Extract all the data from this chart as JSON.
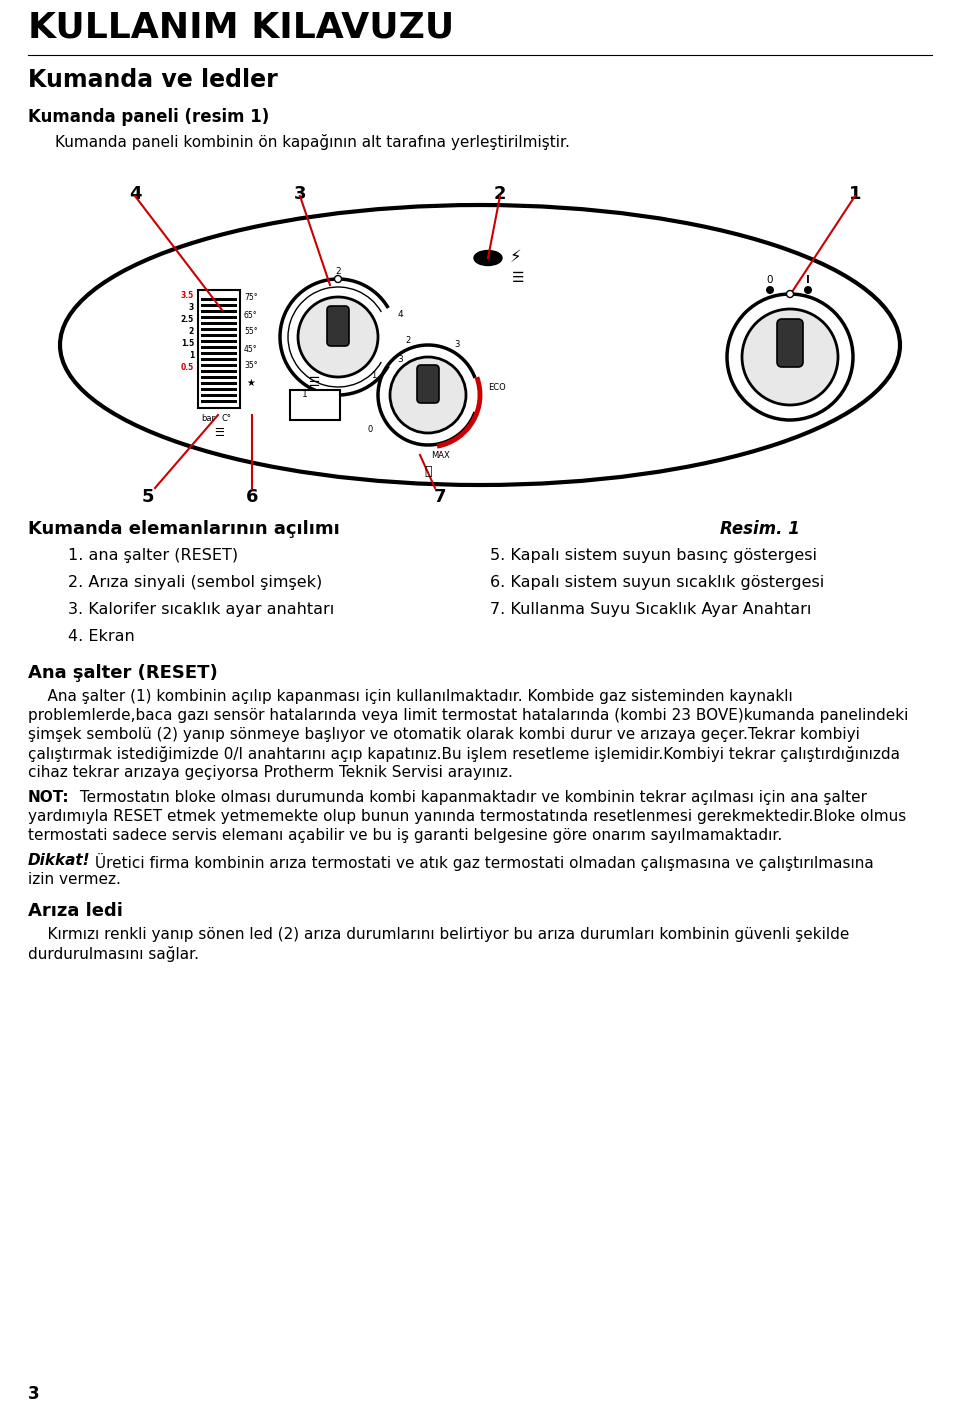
{
  "title": "KULLANIM KILAVUZU",
  "section1": "Kumanda ve ledler",
  "section2": "Kumanda paneli (resim 1)",
  "intro_text": "Kumanda paneli kombinin ön kapağının alt tarafına yerleştirilmiştir.",
  "section3_title": "Kumanda elemanlarının açılımı",
  "resim_label": "Resim. 1",
  "items_left": [
    "1. ana şalter (RESET)",
    "2. Arıza sinyali (sembol şimşek)",
    "3. Kalorifer sıcaklık ayar anahtarı",
    "4. Ekran"
  ],
  "items_right": [
    "5. Kapalı sistem suyun basınç göstergesi",
    "6. Kapalı sistem suyun sıcaklık göstergesi",
    "7. Kullanma Suyu Sıcaklık Ayar Anahtarı"
  ],
  "section4_title": "Ana şalter (RESET)",
  "para1_lines": [
    "    Ana şalter (1) kombinin açılıp kapanması için kullanılmaktadır. Kombide gaz sisteminden kaynaklı",
    "problemlerde,baca gazı sensör hatalarında veya limit termostat hatalarında (kombi 23 BOVE)kumanda panelindeki",
    "şimşek sembolü (2) yanıp sönmeye başlıyor ve otomatik olarak kombi durur ve arızaya geçer.Tekrar kombiyi",
    "çalıştırmak istediğimizde 0/I anahtarını açıp kapatınız.Bu işlem resetleme işlemidir.Kombiyi tekrar çalıştırdığınızda",
    "cihaz tekrar arızaya geçiyorsa Protherm Teknik Servisi arayınız."
  ],
  "para2_bold": "NOT:",
  "para2_lines": [
    " Termostatın bloke olması durumunda kombi kapanmaktadır ve kombinin tekrar açılması için ana şalter",
    "yardımıyla RESET etmek yetmemekte olup bunun yanında termostatında resetlenmesi gerekmektedir.Bloke olmus",
    "termostati sadece servis elemanı açabilir ve bu iş garanti belgesine göre onarım sayılmamaktadır."
  ],
  "para3_bold": "Dikkat!",
  "para3_lines": [
    " Üretici firma kombinin arıza termostati ve atık gaz termostati olmadan çalışmasına ve çalıştırılmasına",
    "izin vermez."
  ],
  "section5_title": "Arıza ledi",
  "para4_lines": [
    "    Kırmızı renkli yanıp sönen led (2) arıza durumlarını belirtiyor bu arıza durumları kombinin güvenli şekilde",
    "durdurulmasını sağlar."
  ],
  "page_num": "3",
  "bg_color": "#ffffff",
  "text_color": "#000000",
  "red_color": "#cc0000"
}
